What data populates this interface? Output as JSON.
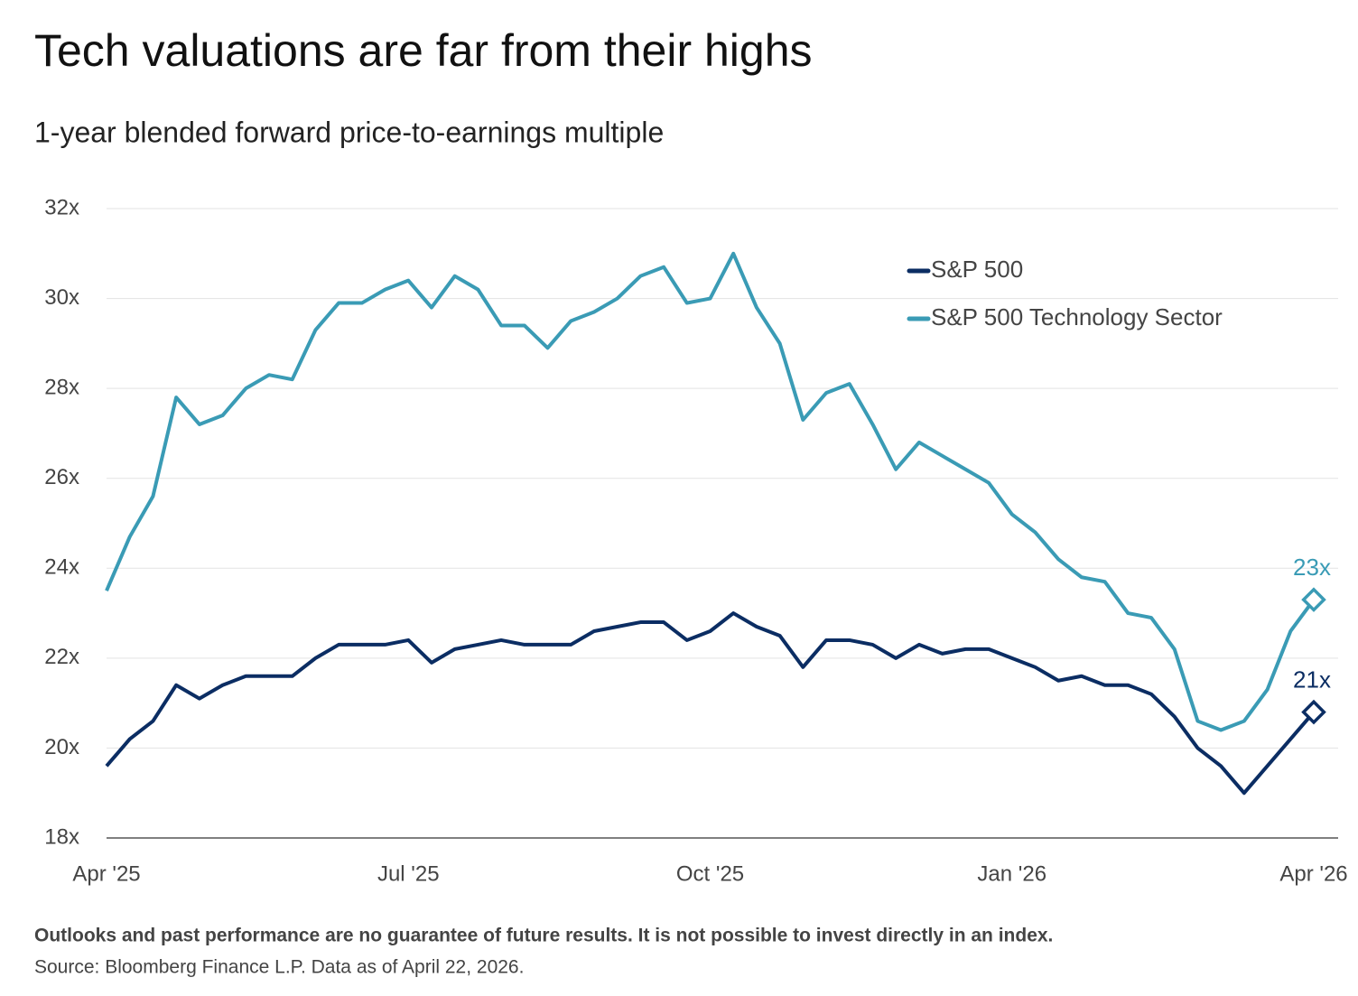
{
  "chart_data": {
    "type": "line",
    "title": "Tech valuations are far from their highs",
    "subtitle": "1-year blended forward price-to-earnings multiple",
    "categories": [
      "Apr '25",
      null,
      null,
      null,
      null,
      null,
      null,
      null,
      null,
      null,
      null,
      null,
      null,
      "Jul '25",
      null,
      null,
      null,
      null,
      null,
      null,
      null,
      null,
      null,
      null,
      null,
      null,
      "Oct '25",
      null,
      null,
      null,
      null,
      null,
      null,
      null,
      null,
      null,
      null,
      null,
      null,
      "Jan '26",
      null,
      null,
      null,
      null,
      null,
      null,
      null,
      null,
      null,
      null,
      null,
      null,
      "Apr '26"
    ],
    "series": [
      {
        "name": "S&P 500",
        "color": "#0b2d63",
        "end_label": "21x",
        "values": [
          19.6,
          20.2,
          20.6,
          21.4,
          21.1,
          21.4,
          21.6,
          21.6,
          21.6,
          22.0,
          22.3,
          22.3,
          22.3,
          22.4,
          21.9,
          22.2,
          22.3,
          22.4,
          22.3,
          22.3,
          22.3,
          22.6,
          22.7,
          22.8,
          22.8,
          22.4,
          22.6,
          23.0,
          22.7,
          22.5,
          21.8,
          22.4,
          22.4,
          22.3,
          22.0,
          22.3,
          22.1,
          22.2,
          22.2,
          22.0,
          21.8,
          21.5,
          21.6,
          21.4,
          21.4,
          21.2,
          20.7,
          20.0,
          19.6,
          19.0,
          19.6,
          20.2,
          20.8
        ]
      },
      {
        "name": "S&P 500 Technology Sector",
        "color": "#3a9bb5",
        "end_label": "23x",
        "values": [
          23.5,
          24.7,
          25.6,
          27.8,
          27.2,
          27.4,
          28.0,
          28.3,
          28.2,
          29.3,
          29.9,
          29.9,
          30.2,
          30.4,
          29.8,
          30.5,
          30.2,
          29.4,
          29.4,
          28.9,
          29.5,
          29.7,
          30.0,
          30.5,
          30.7,
          29.9,
          30.0,
          31.0,
          29.8,
          29.0,
          27.3,
          27.9,
          28.1,
          27.2,
          26.2,
          26.8,
          26.5,
          26.2,
          25.9,
          25.2,
          24.8,
          24.2,
          23.8,
          23.7,
          23.0,
          22.9,
          22.2,
          20.6,
          20.4,
          20.6,
          21.3,
          22.6,
          23.3
        ]
      }
    ],
    "ylim": [
      18,
      32
    ],
    "yticks": [
      {
        "value": 18,
        "label": "18x"
      },
      {
        "value": 20,
        "label": "20x"
      },
      {
        "value": 22,
        "label": "22x"
      },
      {
        "value": 24,
        "label": "24x"
      },
      {
        "value": 26,
        "label": "26x"
      },
      {
        "value": 28,
        "label": "28x"
      },
      {
        "value": 30,
        "label": "30x"
      },
      {
        "value": 32,
        "label": "32x"
      }
    ],
    "grid": true,
    "footnotes": [
      "Outlooks and past performance are no guarantee of future results. It is not possible to invest directly in an index.",
      "Source: Bloomberg Finance L.P. Data as of April 22, 2026."
    ]
  }
}
